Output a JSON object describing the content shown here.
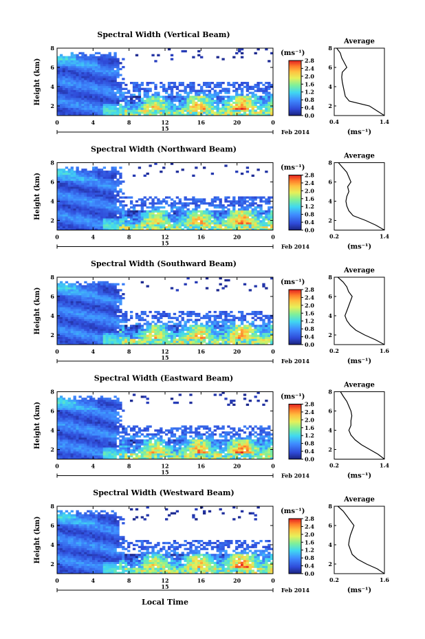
{
  "figure": {
    "x_axis_label": "Local Time",
    "date_label": "Feb 2014",
    "day_label": "15"
  },
  "chart_data": [
    {
      "type": "heatmap",
      "title": "Spectral Width (Vertical Beam)",
      "ylabel": "Height (km)",
      "xlim": [
        0,
        24
      ],
      "ylim": [
        1,
        8
      ],
      "x_ticks": [
        "0",
        "4",
        "8",
        "12",
        "16",
        "20",
        "0"
      ],
      "y_ticks": [
        "2",
        "4",
        "6",
        "8"
      ],
      "colorbar": {
        "label": "(ms⁻¹)",
        "min": 0.0,
        "max": 2.8,
        "ticks": [
          "0.0",
          "0.4",
          "0.8",
          "1.2",
          "1.6",
          "2.0",
          "2.4",
          "2.8"
        ]
      },
      "average_profile": {
        "title": "Average",
        "xlabel": "(ms⁻¹)",
        "xlim": [
          0.4,
          1.4
        ],
        "x_ticks": [
          "0.4",
          "1.4"
        ],
        "y_ticks": [
          "2",
          "4",
          "6",
          "8"
        ],
        "height_km": [
          1.0,
          1.5,
          2.0,
          2.5,
          3.0,
          3.5,
          4.0,
          4.5,
          5.0,
          5.5,
          6.0,
          6.5,
          7.0,
          7.5,
          8.0
        ],
        "width_ms": [
          1.4,
          1.25,
          1.1,
          0.7,
          0.62,
          0.6,
          0.58,
          0.56,
          0.55,
          0.56,
          0.65,
          0.6,
          0.55,
          0.52,
          0.45
        ]
      }
    },
    {
      "type": "heatmap",
      "title": "Spectral Width (Northward Beam)",
      "ylabel": "Height (km)",
      "xlim": [
        0,
        24
      ],
      "ylim": [
        1,
        8
      ],
      "x_ticks": [
        "0",
        "4",
        "8",
        "12",
        "16",
        "20",
        "0"
      ],
      "y_ticks": [
        "2",
        "4",
        "6",
        "8"
      ],
      "colorbar": {
        "label": "(ms⁻¹)",
        "min": 0.0,
        "max": 2.8,
        "ticks": [
          "0.0",
          "0.4",
          "0.8",
          "1.2",
          "1.6",
          "2.0",
          "2.4",
          "2.8"
        ]
      },
      "average_profile": {
        "title": "Average",
        "xlabel": "(ms⁻¹)",
        "xlim": [
          0.2,
          1.4
        ],
        "x_ticks": [
          "0.2",
          "1.4"
        ],
        "y_ticks": [
          "2",
          "4",
          "6",
          "8"
        ],
        "height_km": [
          1.0,
          1.5,
          2.0,
          2.5,
          3.0,
          3.5,
          4.0,
          4.5,
          5.0,
          5.5,
          6.0,
          6.5,
          7.0,
          7.5,
          8.0
        ],
        "width_ms": [
          1.4,
          1.2,
          0.95,
          0.65,
          0.55,
          0.5,
          0.48,
          0.5,
          0.55,
          0.52,
          0.6,
          0.55,
          0.5,
          0.4,
          0.3
        ]
      }
    },
    {
      "type": "heatmap",
      "title": "Spectral Width (Southward Beam)",
      "ylabel": "Height (km)",
      "xlim": [
        0,
        24
      ],
      "ylim": [
        1,
        8
      ],
      "x_ticks": [
        "0",
        "4",
        "8",
        "12",
        "16",
        "20",
        "0"
      ],
      "y_ticks": [
        "2",
        "4",
        "6",
        "8"
      ],
      "colorbar": {
        "label": "(ms⁻¹)",
        "min": 0.0,
        "max": 2.8,
        "ticks": [
          "0.0",
          "0.4",
          "0.8",
          "1.2",
          "1.6",
          "2.0",
          "2.4",
          "2.8"
        ]
      },
      "average_profile": {
        "title": "Average",
        "xlabel": "(ms⁻¹)",
        "xlim": [
          0.2,
          1.6
        ],
        "x_ticks": [
          "0.2",
          "1.6"
        ],
        "y_ticks": [
          "2",
          "4",
          "6",
          "8"
        ],
        "height_km": [
          1.0,
          1.5,
          2.0,
          2.5,
          3.0,
          3.5,
          4.0,
          4.5,
          5.0,
          5.5,
          6.0,
          6.5,
          7.0,
          7.5,
          8.0
        ],
        "width_ms": [
          1.6,
          1.35,
          1.05,
          0.8,
          0.65,
          0.55,
          0.5,
          0.55,
          0.6,
          0.65,
          0.7,
          0.6,
          0.55,
          0.45,
          0.3
        ]
      }
    },
    {
      "type": "heatmap",
      "title": "Spectral Width (Eastward Beam)",
      "ylabel": "Height (km)",
      "xlim": [
        0,
        24
      ],
      "ylim": [
        1,
        8
      ],
      "x_ticks": [
        "0",
        "4",
        "8",
        "12",
        "16",
        "20",
        "0"
      ],
      "y_ticks": [
        "2",
        "4",
        "6",
        "8"
      ],
      "colorbar": {
        "label": "(ms⁻¹)",
        "min": 0.0,
        "max": 2.8,
        "ticks": [
          "0.0",
          "0.4",
          "0.8",
          "1.2",
          "1.6",
          "2.0",
          "2.4",
          "2.8"
        ]
      },
      "average_profile": {
        "title": "Average",
        "xlabel": "(ms⁻¹)",
        "xlim": [
          0.2,
          1.4
        ],
        "x_ticks": [
          "0.2",
          "1.4"
        ],
        "y_ticks": [
          "2",
          "4",
          "6",
          "8"
        ],
        "height_km": [
          1.0,
          1.5,
          2.0,
          2.5,
          3.0,
          3.5,
          4.0,
          4.5,
          5.0,
          5.5,
          6.0,
          6.5,
          7.0,
          7.5,
          8.0
        ],
        "width_ms": [
          1.4,
          1.25,
          1.05,
          0.85,
          0.7,
          0.6,
          0.55,
          0.6,
          0.6,
          0.62,
          0.6,
          0.55,
          0.5,
          0.42,
          0.35
        ]
      }
    },
    {
      "type": "heatmap",
      "title": "Spectral Width (Westward Beam)",
      "ylabel": "Height (km)",
      "xlim": [
        0,
        24
      ],
      "ylim": [
        1,
        8
      ],
      "x_ticks": [
        "0",
        "4",
        "8",
        "12",
        "16",
        "20",
        "0"
      ],
      "y_ticks": [
        "2",
        "4",
        "6",
        "8"
      ],
      "colorbar": {
        "label": "(ms⁻¹)",
        "min": 0.0,
        "max": 2.8,
        "ticks": [
          "0.0",
          "0.4",
          "0.8",
          "1.2",
          "1.6",
          "2.0",
          "2.4",
          "2.8"
        ]
      },
      "average_profile": {
        "title": "Average",
        "xlabel": "(ms⁻¹)",
        "xlim": [
          0.2,
          1.6
        ],
        "x_ticks": [
          "0.2",
          "1.6"
        ],
        "y_ticks": [
          "2",
          "4",
          "6",
          "8"
        ],
        "height_km": [
          1.0,
          1.5,
          2.0,
          2.5,
          3.0,
          3.5,
          4.0,
          4.5,
          5.0,
          5.5,
          6.0,
          6.5,
          7.0,
          7.5,
          8.0
        ],
        "width_ms": [
          1.6,
          1.4,
          1.1,
          0.85,
          0.7,
          0.65,
          0.6,
          0.62,
          0.65,
          0.7,
          0.75,
          0.65,
          0.55,
          0.45,
          0.3
        ]
      }
    }
  ]
}
